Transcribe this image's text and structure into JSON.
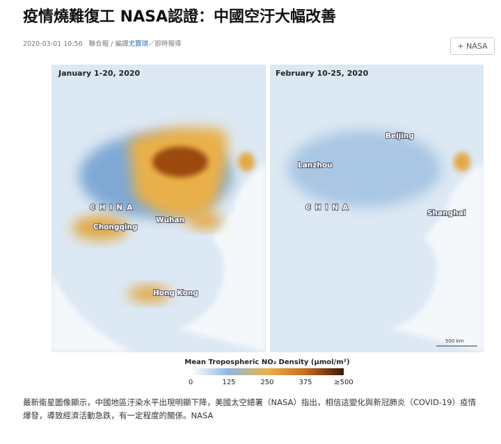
{
  "header": {
    "title": "疫情燒難復工 NASA認證：中國空汙大幅改善",
    "date": "2020-03-01 10:56",
    "source": "聯合報",
    "sep1": "/",
    "editor_prefix": "編譯",
    "editor": "尤寶琪",
    "sep2": "／",
    "section": "即時報導",
    "tag_button": "+ NASA"
  },
  "figure": {
    "panels": [
      {
        "title": "January 1-20, 2020",
        "labels": [
          "CHINA",
          "Chongqing",
          "Wuhan",
          "Hong Kong"
        ]
      },
      {
        "title": "February 10-25, 2020",
        "labels": [
          "Beijing",
          "Lanzhou",
          "CHINA",
          "Shanghai"
        ],
        "scale": "500 km"
      }
    ],
    "legend": {
      "title": "Mean Tropospheric NO₂ Density (μmol/m²)",
      "ticks": [
        "0",
        "125",
        "250",
        "375",
        "≥500"
      ]
    }
  },
  "caption": "最新衛星圖像顯示，中國地區汙染水平出現明顯下降，美國太空總署（NASA）指出，相信這變化與新冠肺炎（COVID-19）疫情爆發，導致經濟活動急跌，有一定程度的關係。NASA"
}
